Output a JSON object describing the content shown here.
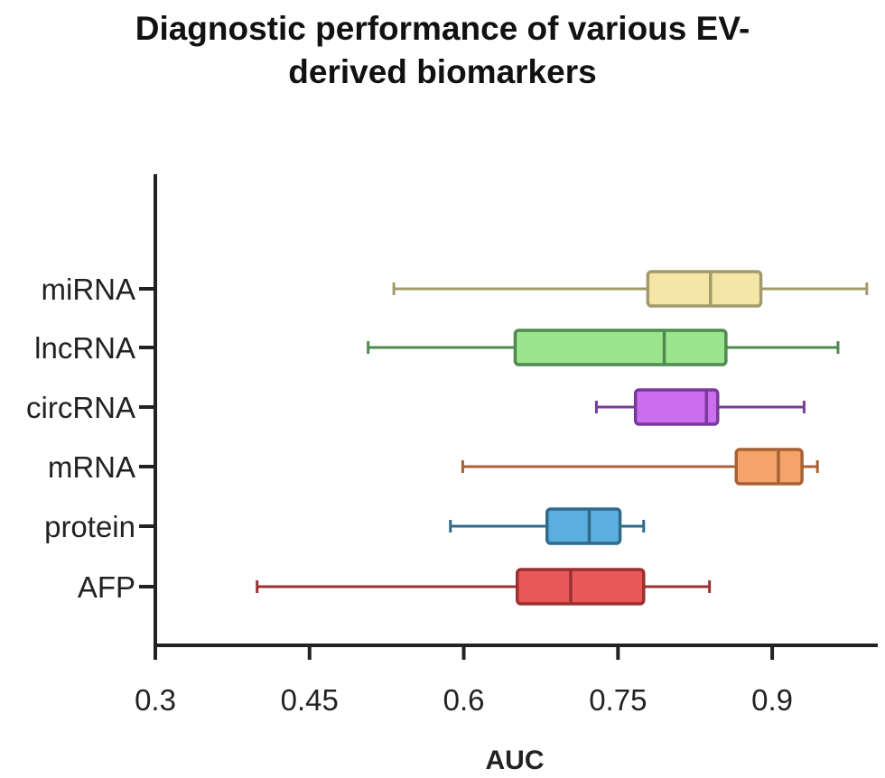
{
  "chart_data": {
    "type": "boxplot",
    "orientation": "horizontal",
    "title_line1": "Diagnostic performance of various EV-",
    "title_line2": "derived biomarkers",
    "xlabel": "AUC",
    "ylabel": "",
    "xlim": [
      0.3,
      1.0
    ],
    "xticks": [
      "0.3",
      "0.45",
      "0.6",
      "0.75",
      "0.9"
    ],
    "grid": false,
    "series": [
      {
        "name": "miRNA",
        "min": 0.532,
        "q1": 0.779,
        "median": 0.84,
        "q3": 0.889,
        "max": 0.992,
        "fill": "#f5e6a8",
        "stroke": "#a39a6a"
      },
      {
        "name": "lncRNA",
        "min": 0.507,
        "q1": 0.65,
        "median": 0.795,
        "q3": 0.855,
        "max": 0.964,
        "fill": "#9de48f",
        "stroke": "#4f8a4f"
      },
      {
        "name": "circRNA",
        "min": 0.729,
        "q1": 0.767,
        "median": 0.836,
        "q3": 0.847,
        "max": 0.931,
        "fill": "#cc6ef0",
        "stroke": "#7a3a9a"
      },
      {
        "name": "mRNA",
        "min": 0.599,
        "q1": 0.865,
        "median": 0.906,
        "q3": 0.929,
        "max": 0.944,
        "fill": "#f4a46a",
        "stroke": "#a86035"
      },
      {
        "name": "protein",
        "min": 0.587,
        "q1": 0.681,
        "median": 0.722,
        "q3": 0.752,
        "max": 0.775,
        "fill": "#5aafe0",
        "stroke": "#2f6a8a"
      },
      {
        "name": "AFP",
        "min": 0.399,
        "q1": 0.652,
        "median": 0.704,
        "q3": 0.775,
        "max": 0.839,
        "fill": "#e85858",
        "stroke": "#9a3030"
      }
    ]
  }
}
